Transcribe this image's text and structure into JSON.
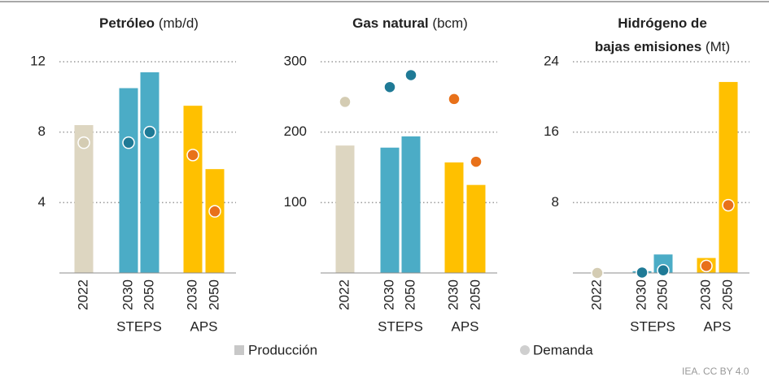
{
  "chart_data": [
    {
      "type": "bar",
      "title_lines": [
        "Petróleo"
      ],
      "unit": "(mb/d)",
      "categories": [
        "2022",
        "2030",
        "2050",
        "2030",
        "2050"
      ],
      "groups": [
        {
          "label": "STEPS",
          "members": [
            1,
            2
          ]
        },
        {
          "label": "APS",
          "members": [
            3,
            4
          ]
        }
      ],
      "ylim": [
        0,
        12
      ],
      "yticks": [
        4,
        8,
        12
      ],
      "grid": true,
      "series": [
        {
          "name": "Producción",
          "mark": "bar",
          "color": "#c8c8c8",
          "colors": [
            "#ddd6c1",
            "#4bacc6",
            "#4bacc6",
            "#ffc000",
            "#ffc000"
          ],
          "values": [
            8.4,
            10.5,
            11.4,
            9.5,
            5.9
          ]
        },
        {
          "name": "Demanda",
          "mark": "dot",
          "color": "#cfcfcf",
          "colors": [
            "#d4ccb3",
            "#1f7a96",
            "#1f7a96",
            "#e8711a",
            "#e8711a"
          ],
          "values": [
            7.4,
            7.4,
            8.0,
            6.7,
            3.5
          ]
        }
      ]
    },
    {
      "type": "bar",
      "title_lines": [
        "Gas natural"
      ],
      "unit": "(bcm)",
      "categories": [
        "2022",
        "2030",
        "2050",
        "2030",
        "2050"
      ],
      "groups": [
        {
          "label": "STEPS",
          "members": [
            1,
            2
          ]
        },
        {
          "label": "APS",
          "members": [
            3,
            4
          ]
        }
      ],
      "ylim": [
        0,
        300
      ],
      "yticks": [
        100,
        200,
        300
      ],
      "grid": true,
      "series": [
        {
          "name": "Producción",
          "mark": "bar",
          "color": "#c8c8c8",
          "colors": [
            "#ddd6c1",
            "#4bacc6",
            "#4bacc6",
            "#ffc000",
            "#ffc000"
          ],
          "values": [
            181,
            178,
            194,
            157,
            125
          ]
        },
        {
          "name": "Demanda",
          "mark": "dot",
          "color": "#cfcfcf",
          "colors": [
            "#d4ccb3",
            "#1f7a96",
            "#1f7a96",
            "#e8711a",
            "#e8711a"
          ],
          "values": [
            243,
            264,
            281,
            247,
            158
          ]
        }
      ]
    },
    {
      "type": "bar",
      "title_lines": [
        "Hidrógeno de",
        "bajas emisiones"
      ],
      "unit": "(Mt)",
      "categories": [
        "2022",
        "2030",
        "2050",
        "2030",
        "2050"
      ],
      "groups": [
        {
          "label": "STEPS",
          "members": [
            1,
            2
          ]
        },
        {
          "label": "APS",
          "members": [
            3,
            4
          ]
        }
      ],
      "ylim": [
        0,
        24
      ],
      "yticks": [
        8,
        16,
        24
      ],
      "grid": true,
      "series": [
        {
          "name": "Producción",
          "mark": "bar",
          "color": "#c8c8c8",
          "colors": [
            "#ddd6c1",
            "#4bacc6",
            "#4bacc6",
            "#ffc000",
            "#ffc000"
          ],
          "values": [
            0,
            0.2,
            2.1,
            1.7,
            21.7
          ]
        },
        {
          "name": "Demanda",
          "mark": "dot",
          "color": "#cfcfcf",
          "colors": [
            "#d4ccb3",
            "#1f7a96",
            "#1f7a96",
            "#e8711a",
            "#e8711a"
          ],
          "values": [
            0,
            0.05,
            0.3,
            0.8,
            7.7
          ]
        }
      ]
    }
  ],
  "source": "IEA. CC BY 4.0"
}
